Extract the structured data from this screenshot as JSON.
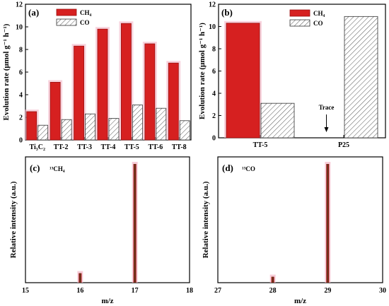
{
  "colors": {
    "ch4": "#d62020",
    "ch4_edge": "#9a1010",
    "ch4_glow": "#f3b8c8",
    "co_fill": "#ffffff",
    "co_hatch": "#555555",
    "axis": "#000000"
  },
  "chart_data": [
    {
      "id": "a",
      "type": "bar",
      "panel_label": "(a)",
      "ylabel": "Evolution rate (μmol g⁻¹ h⁻¹)",
      "xlabel": "",
      "categories": [
        "Ti₃C₂",
        "TT-2",
        "TT-3",
        "TT-4",
        "TT-5",
        "TT-6",
        "TT-8"
      ],
      "series": [
        {
          "name": "CH₄",
          "values": [
            2.5,
            5.1,
            8.3,
            9.8,
            10.3,
            8.5,
            6.8
          ]
        },
        {
          "name": "CO",
          "values": [
            1.3,
            1.8,
            2.3,
            1.9,
            3.1,
            2.8,
            1.7
          ]
        }
      ],
      "ylim": [
        0,
        12
      ],
      "yticks": [
        0,
        2,
        4,
        6,
        8,
        10,
        12
      ],
      "legend": "top-left"
    },
    {
      "id": "b",
      "type": "bar",
      "panel_label": "(b)",
      "ylabel": "Evolution rate (μmol g⁻¹ h⁻¹)",
      "xlabel": "",
      "categories": [
        "TT-5",
        "P25"
      ],
      "series": [
        {
          "name": "CH₄",
          "values": [
            10.3,
            0
          ]
        },
        {
          "name": "CO",
          "values": [
            3.1,
            10.9
          ]
        }
      ],
      "ylim": [
        0,
        12
      ],
      "yticks": [
        0,
        2,
        4,
        6,
        8,
        10,
        12
      ],
      "legend": "top-center",
      "annotation": "Trace"
    },
    {
      "id": "c",
      "type": "bar",
      "panel_label": "(c)",
      "species_label": "¹³CH₄",
      "xlabel": "m/z",
      "ylabel": "Relative intensity (a.u.)",
      "x": [
        16,
        17
      ],
      "values": [
        0.08,
        1.0
      ],
      "xlim": [
        15,
        18
      ],
      "xticks": [
        15,
        16,
        17,
        18
      ]
    },
    {
      "id": "d",
      "type": "bar",
      "panel_label": "(d)",
      "species_label": "¹³CO",
      "xlabel": "m/z",
      "ylabel": "Relative intensity (a.u.)",
      "x": [
        28,
        29
      ],
      "values": [
        0.05,
        1.0
      ],
      "xlim": [
        27,
        30
      ],
      "xticks": [
        27,
        28,
        29,
        30
      ]
    }
  ]
}
